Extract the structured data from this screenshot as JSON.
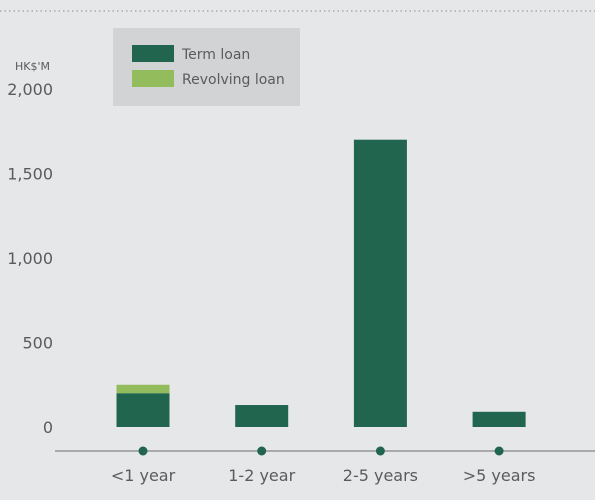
{
  "chart_data": {
    "type": "bar",
    "stacked": true,
    "unit_label": "HK$'M",
    "categories": [
      "<1 year",
      "1-2 year",
      "2-5 years",
      ">5 years"
    ],
    "series": [
      {
        "name": "Term loan",
        "values": [
          200,
          130,
          1700,
          90
        ]
      },
      {
        "name": "Revolving loan",
        "values": [
          50,
          0,
          0,
          0
        ]
      }
    ],
    "ylim": [
      0,
      2000
    ],
    "yticks": [
      0,
      500,
      1000,
      1500,
      2000
    ],
    "ytick_labels": [
      "0",
      "500",
      "1,000",
      "1,500",
      "2,000"
    ],
    "legend_position": "top-left",
    "grid": false
  },
  "colors": {
    "background": "#e6e7e8",
    "legend_box": "#d2d3d5",
    "term_loan": "#21654f",
    "revolving_loan": "#93bd5c",
    "text": "#5a5b5d",
    "axis": "#6d6e70"
  }
}
